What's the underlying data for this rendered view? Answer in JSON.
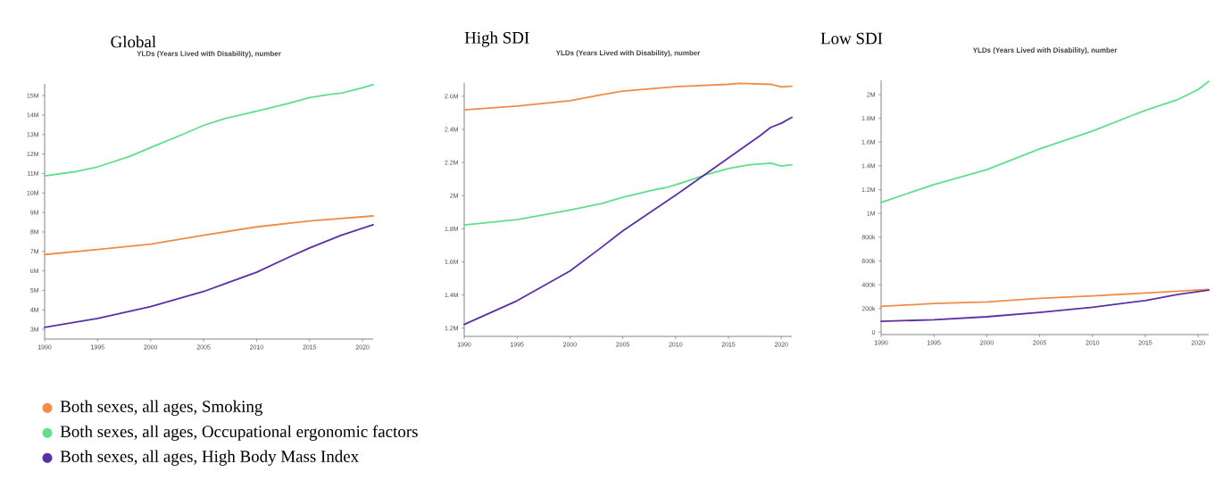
{
  "chart_data": [
    {
      "type": "line",
      "title": "Global",
      "subtitle": "YLDs (Years Lived with Disability), number",
      "xlim": [
        1990,
        2021
      ],
      "ylim": [
        2500000,
        15600000
      ],
      "xticks": [
        1990,
        1995,
        2000,
        2005,
        2010,
        2015,
        2020
      ],
      "yticks": [
        {
          "value": 3000000,
          "label": "3M"
        },
        {
          "value": 4000000,
          "label": "4M"
        },
        {
          "value": 5000000,
          "label": "5M"
        },
        {
          "value": 6000000,
          "label": "6M"
        },
        {
          "value": 7000000,
          "label": "7M"
        },
        {
          "value": 8000000,
          "label": "8M"
        },
        {
          "value": 9000000,
          "label": "9M"
        },
        {
          "value": 10000000,
          "label": "10M"
        },
        {
          "value": 11000000,
          "label": "11M"
        },
        {
          "value": 12000000,
          "label": "12M"
        },
        {
          "value": 13000000,
          "label": "13M"
        },
        {
          "value": 14000000,
          "label": "14M"
        },
        {
          "value": 15000000,
          "label": "15M"
        }
      ],
      "legend": "bottom",
      "series": [
        {
          "name": "Both sexes, all ages, Smoking",
          "color": "#f08c46",
          "x": [
            1990,
            1995,
            2000,
            2005,
            2010,
            2015,
            2021
          ],
          "values": [
            6840000,
            7100000,
            7370000,
            7830000,
            8260000,
            8560000,
            8820000
          ]
        },
        {
          "name": "Both sexes, all ages, Occupational ergonomic factors",
          "color": "#5ee08a",
          "x": [
            1990,
            1993,
            1995,
            1998,
            2000,
            2003,
            2005,
            2007,
            2010,
            2013,
            2015,
            2017,
            2018,
            2020,
            2021
          ],
          "values": [
            10880000,
            11100000,
            11340000,
            11870000,
            12330000,
            13000000,
            13470000,
            13820000,
            14200000,
            14600000,
            14900000,
            15070000,
            15120000,
            15400000,
            15560000
          ]
        },
        {
          "name": "Both sexes, all ages, High Body Mass Index",
          "color": "#5b2fa8",
          "x": [
            1990,
            1995,
            2000,
            2005,
            2010,
            2013,
            2015,
            2018,
            2021
          ],
          "values": [
            3100000,
            3560000,
            4170000,
            4940000,
            5930000,
            6690000,
            7180000,
            7830000,
            8370000
          ]
        }
      ]
    },
    {
      "type": "line",
      "title": "High SDI",
      "subtitle": "YLDs (Years Lived with Disability), number",
      "xlim": [
        1990,
        2021
      ],
      "ylim": [
        1150000,
        2680000
      ],
      "xticks": [
        1990,
        1995,
        2000,
        2005,
        2010,
        2015,
        2020
      ],
      "yticks": [
        {
          "value": 1200000,
          "label": "1.2M"
        },
        {
          "value": 1400000,
          "label": "1.4M"
        },
        {
          "value": 1600000,
          "label": "1.6M"
        },
        {
          "value": 1800000,
          "label": "1.8M"
        },
        {
          "value": 2000000,
          "label": "2M"
        },
        {
          "value": 2200000,
          "label": "2.2M"
        },
        {
          "value": 2400000,
          "label": "2.4M"
        },
        {
          "value": 2600000,
          "label": "2.6M"
        }
      ],
      "series": [
        {
          "color": "#f08c46",
          "x": [
            1990,
            1995,
            2000,
            2003,
            2005,
            2010,
            2015,
            2016,
            2019,
            2020,
            2021
          ],
          "values": [
            2518000,
            2541000,
            2573000,
            2609000,
            2631000,
            2658000,
            2672000,
            2678000,
            2672000,
            2656000,
            2660000
          ]
        },
        {
          "color": "#5ee08a",
          "x": [
            1990,
            1995,
            2000,
            2003,
            2005,
            2008,
            2009,
            2010,
            2013,
            2015,
            2017,
            2019,
            2020,
            2021
          ],
          "values": [
            1823000,
            1855000,
            1913000,
            1952000,
            1990000,
            2035000,
            2047000,
            2065000,
            2128000,
            2164000,
            2186000,
            2196000,
            2178000,
            2186000
          ]
        },
        {
          "color": "#5b2fa8",
          "x": [
            1990,
            1995,
            2000,
            2003,
            2005,
            2010,
            2013,
            2015,
            2018,
            2019,
            2020,
            2021
          ],
          "values": [
            1222000,
            1365000,
            1545000,
            1688000,
            1787000,
            2002000,
            2137000,
            2227000,
            2362000,
            2412000,
            2437000,
            2473000
          ]
        }
      ]
    },
    {
      "type": "line",
      "title": "Low SDI",
      "subtitle": "YLDs (Years Lived with Disability), number",
      "xlim": [
        1990,
        2021
      ],
      "ylim": [
        -20000,
        2120000
      ],
      "xticks": [
        1990,
        1995,
        2000,
        2005,
        2010,
        2015,
        2020
      ],
      "yticks": [
        0,
        {
          "value": 200000,
          "label": "200k"
        },
        {
          "value": 400000,
          "label": "400k"
        },
        {
          "value": 600000,
          "label": "600k"
        },
        {
          "value": 800000,
          "label": "800k"
        },
        {
          "value": 1000000,
          "label": "1M"
        },
        {
          "value": 1200000,
          "label": "1.2M"
        },
        {
          "value": 1400000,
          "label": "1.4M"
        },
        {
          "value": 1600000,
          "label": "1.6M"
        },
        {
          "value": 1800000,
          "label": "1.8M"
        },
        {
          "value": 2000000,
          "label": "2M"
        }
      ],
      "series": [
        {
          "color": "#f08c46",
          "x": [
            1990,
            1995,
            2000,
            2005,
            2010,
            2015,
            2021
          ],
          "values": [
            217000,
            242000,
            255000,
            285000,
            305000,
            330000,
            360000
          ]
        },
        {
          "color": "#5ee08a",
          "x": [
            1990,
            1995,
            2000,
            2005,
            2010,
            2015,
            2018,
            2020,
            2021
          ],
          "values": [
            1092000,
            1243000,
            1368000,
            1543000,
            1693000,
            1868000,
            1955000,
            2043000,
            2110000
          ]
        },
        {
          "color": "#5b2fa8",
          "x": [
            1990,
            1995,
            2000,
            2005,
            2010,
            2015,
            2018,
            2021
          ],
          "values": [
            92000,
            105000,
            130000,
            167000,
            210000,
            267000,
            317000,
            355000
          ]
        }
      ]
    }
  ]
}
